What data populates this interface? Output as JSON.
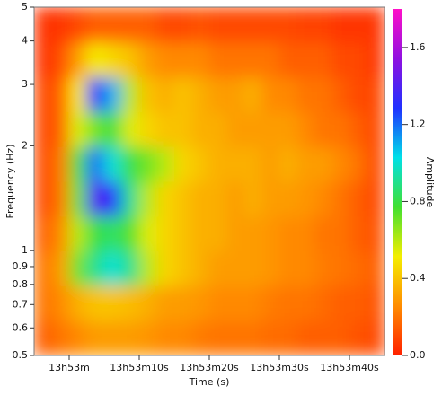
{
  "chart_data": {
    "type": "heatmap",
    "xlabel": "Time (s)",
    "ylabel": "Frequency (Hz)",
    "colorbar_label": "Amplitude",
    "x": [
      49976.25,
      49978.75,
      49981.25,
      49983.75,
      49986.25,
      49988.75,
      49991.25,
      49993.75,
      49996.25,
      49998.75,
      50001.25,
      50003.75,
      50006.25,
      50008.75,
      50011.25,
      50013.75,
      50016.25,
      50018.75,
      50021.25,
      50023.75
    ],
    "y": [
      0.561,
      0.706,
      0.889,
      1.119,
      1.409,
      1.774,
      2.233,
      2.811,
      3.539,
      4.455
    ],
    "values": [
      [
        0.15,
        0.2,
        0.25,
        0.3,
        0.3,
        0.3,
        0.28,
        0.25,
        0.25,
        0.22,
        0.2,
        0.2,
        0.2,
        0.18,
        0.18,
        0.15,
        0.15,
        0.15,
        0.12,
        0.1
      ],
      [
        0.2,
        0.25,
        0.35,
        0.4,
        0.4,
        0.38,
        0.35,
        0.3,
        0.3,
        0.28,
        0.25,
        0.25,
        0.25,
        0.22,
        0.2,
        0.2,
        0.18,
        0.15,
        0.15,
        0.12
      ],
      [
        0.2,
        0.3,
        0.7,
        0.9,
        1.0,
        0.9,
        0.6,
        0.45,
        0.4,
        0.35,
        0.3,
        0.3,
        0.3,
        0.28,
        0.25,
        0.25,
        0.22,
        0.2,
        0.18,
        0.15
      ],
      [
        0.15,
        0.25,
        0.6,
        0.8,
        0.85,
        0.75,
        0.55,
        0.45,
        0.4,
        0.35,
        0.35,
        0.3,
        0.3,
        0.28,
        0.25,
        0.25,
        0.2,
        0.2,
        0.15,
        0.12
      ],
      [
        0.1,
        0.2,
        0.7,
        1.4,
        1.3,
        0.9,
        0.6,
        0.45,
        0.4,
        0.35,
        0.35,
        0.3,
        0.35,
        0.3,
        0.3,
        0.28,
        0.25,
        0.2,
        0.15,
        0.1
      ],
      [
        0.1,
        0.2,
        0.75,
        1.2,
        1.0,
        0.8,
        0.7,
        0.6,
        0.45,
        0.4,
        0.35,
        0.35,
        0.35,
        0.3,
        0.35,
        0.3,
        0.3,
        0.25,
        0.2,
        0.1
      ],
      [
        0.1,
        0.15,
        0.55,
        0.7,
        0.8,
        0.55,
        0.45,
        0.4,
        0.4,
        0.35,
        0.35,
        0.3,
        0.3,
        0.3,
        0.3,
        0.25,
        0.2,
        0.2,
        0.15,
        0.1
      ],
      [
        0.1,
        0.15,
        0.5,
        1.3,
        1.1,
        0.6,
        0.4,
        0.35,
        0.4,
        0.35,
        0.3,
        0.3,
        0.35,
        0.25,
        0.25,
        0.2,
        0.2,
        0.15,
        0.1,
        0.1
      ],
      [
        0.05,
        0.1,
        0.3,
        0.5,
        0.45,
        0.4,
        0.3,
        0.25,
        0.25,
        0.25,
        0.2,
        0.2,
        0.2,
        0.2,
        0.15,
        0.15,
        0.15,
        0.1,
        0.1,
        0.05
      ],
      [
        0.05,
        0.05,
        0.1,
        0.15,
        0.15,
        0.15,
        0.15,
        0.1,
        0.1,
        0.12,
        0.1,
        0.1,
        0.1,
        0.1,
        0.1,
        0.08,
        0.08,
        0.05,
        0.05,
        0.05
      ]
    ],
    "xlim": [
      49975,
      50025
    ],
    "xticks": [
      {
        "value": 49980,
        "label": "13h53m"
      },
      {
        "value": 49990,
        "label": "13h53m10s"
      },
      {
        "value": 50000,
        "label": "13h53m20s"
      },
      {
        "value": 50010,
        "label": "13h53m30s"
      },
      {
        "value": 50020,
        "label": "13h53m40s"
      }
    ],
    "ylim": [
      0.5,
      5
    ],
    "ylog": true,
    "yticks": [
      0.5,
      0.6,
      0.7,
      0.8,
      0.9,
      1,
      2,
      3,
      4,
      5
    ],
    "zlim": [
      0,
      1.8
    ],
    "zticks": [
      {
        "value": 0,
        "label": "0.0"
      },
      0.4,
      0.8,
      1.2,
      1.6
    ],
    "colormap": [
      "#ff2000",
      "#ff8c00",
      "#f4ee00",
      "#40e030",
      "#00e0e8",
      "#2030ff",
      "#9010e0",
      "#ff10c8"
    ]
  }
}
